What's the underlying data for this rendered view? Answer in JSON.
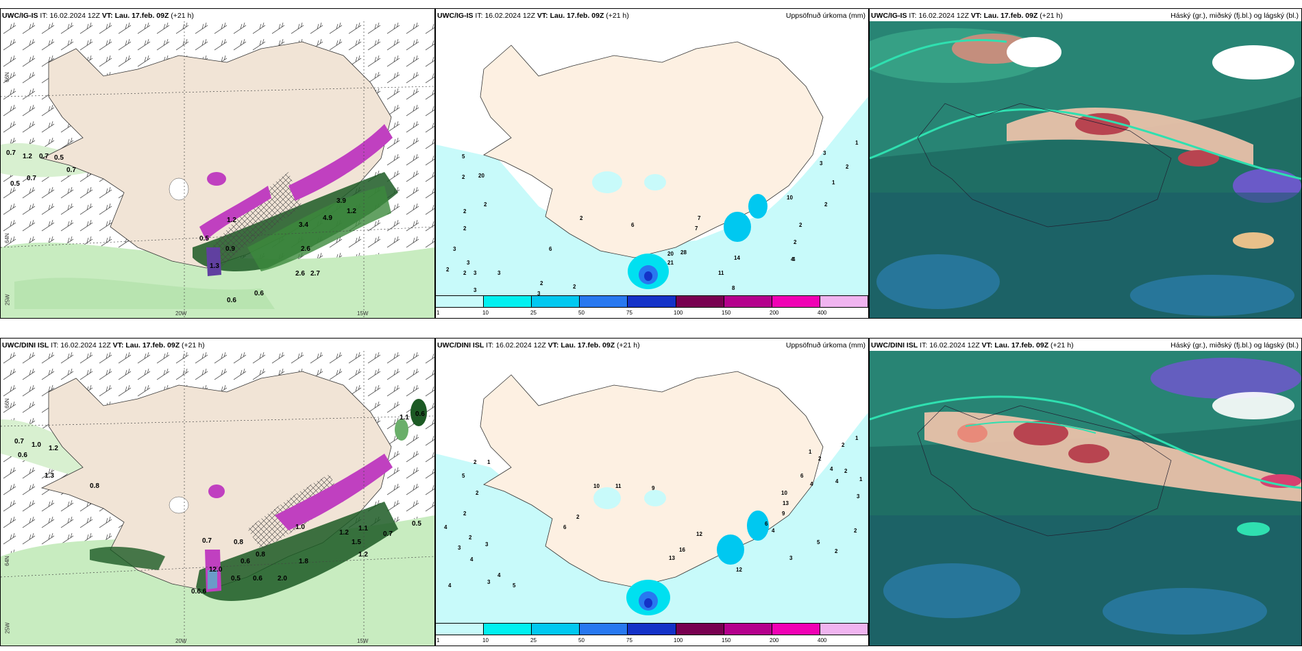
{
  "rows": [
    {
      "model": "UWC/IG-IS",
      "it_label": "IT:",
      "it_value": "16.02.2024 12Z",
      "vt_label": "VT:",
      "vt_value": "Lau. 17.feb. 09Z",
      "lead": "(+21 h)"
    },
    {
      "model": "UWC/DINI ISL",
      "it_label": "IT:",
      "it_value": "16.02.2024 12Z",
      "vt_label": "VT:",
      "vt_value": "Lau. 17.feb. 09Z",
      "lead": "(+21 h)"
    }
  ],
  "precip_title": "Uppsöfnuð úrkoma (mm)",
  "cloud_title": "Háský (gr.), miðský (fj.bl.) og lágský (bl.)",
  "coords": {
    "lat66": "66N",
    "lat64": "64N",
    "lon25": "25W",
    "lon20": "20W",
    "lon15": "15W"
  },
  "colorbar": {
    "labels": [
      "1",
      "10",
      "25",
      "50",
      "75",
      "100",
      "150",
      "200",
      "400"
    ],
    "colors": [
      "#c8fafa",
      "#00f0f0",
      "#00c8f0",
      "#2878f0",
      "#1432c8",
      "#780050",
      "#b4008c",
      "#f000b4",
      "#f0b4f0"
    ]
  },
  "snow_labels_top": [
    "0.7",
    "1.2",
    "0.7",
    "0.5",
    "0.5",
    "0.7",
    "0.7",
    "1.2",
    "0.5",
    "0.9",
    "1.3",
    "2.6",
    "2.6",
    "2.7",
    "0.6",
    "0.6",
    "3.4",
    "4.9",
    "3.9",
    "1.2"
  ],
  "snow_labels_bottom": [
    "0.7",
    "1.0",
    "1.2",
    "0.6",
    "1.3",
    "0.8",
    "1.1",
    "0.6",
    "0.5",
    "0.7",
    "1.1",
    "1.2",
    "1.5",
    "1.2",
    "0.8",
    "0.6",
    "0.5",
    "0.6",
    "2.0",
    "1.8",
    "0.6.6",
    "12.0",
    "0.7",
    "0.8",
    "1.0"
  ],
  "precip_labels_top": [
    "5",
    "2",
    "20",
    "2",
    "2",
    "2",
    "3",
    "3",
    "2",
    "2",
    "3",
    "3",
    "3",
    "2",
    "3",
    "6",
    "2",
    "2",
    "6",
    "7",
    "7",
    "20",
    "21",
    "28",
    "14",
    "11",
    "8",
    "2",
    "4",
    "10",
    "2",
    "1",
    "2",
    "4",
    "3",
    "3",
    "2",
    "1"
  ],
  "precip_labels_bottom": [
    "5",
    "2",
    "1",
    "2",
    "4",
    "2",
    "2",
    "3",
    "3",
    "4",
    "4",
    "5",
    "3",
    "4",
    "6",
    "10",
    "2",
    "11",
    "9",
    "12",
    "13",
    "16",
    "12",
    "6",
    "4",
    "3",
    "5",
    "2",
    "10",
    "13",
    "9",
    "1",
    "2",
    "2",
    "1",
    "1",
    "6",
    "4",
    "2",
    "2",
    "3",
    "4",
    "4"
  ]
}
